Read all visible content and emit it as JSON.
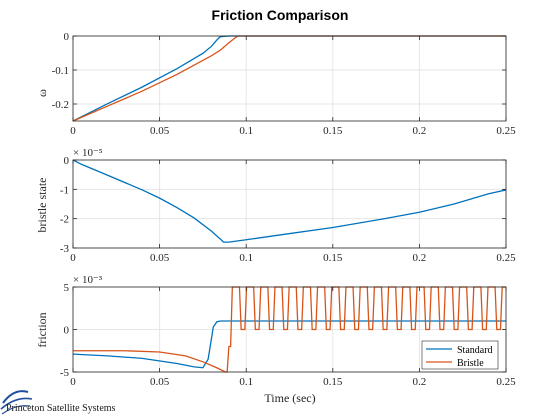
{
  "figure": {
    "title": "Friction Comparison",
    "xlabel": "Time (sec)",
    "logo_text": "Princeton Satellite Systems"
  },
  "colors": {
    "series1": "#0072BD",
    "series2": "#D95319",
    "grid": "#e6e6e6",
    "axis": "#262626"
  },
  "chart_data": [
    {
      "type": "line",
      "ylabel": "ω",
      "xlim": [
        0,
        0.25
      ],
      "ylim": [
        -0.25,
        0
      ],
      "x_ticks": [
        "0",
        "0.05",
        "0.1",
        "0.15",
        "0.2",
        "0.25"
      ],
      "y_ticks": [
        {
          "value": -0.2,
          "label": "-0.2"
        },
        {
          "value": -0.1,
          "label": "-0.1"
        },
        {
          "value": 0,
          "label": "0"
        }
      ],
      "exponent": "",
      "grid": true,
      "series": [
        {
          "color": "#0072BD",
          "x": [
            0,
            0.02,
            0.04,
            0.06,
            0.075,
            0.08,
            0.083,
            0.085,
            0.09,
            0.25
          ],
          "y": [
            -0.25,
            -0.199,
            -0.15,
            -0.096,
            -0.051,
            -0.03,
            -0.012,
            -0.002,
            0,
            0
          ]
        },
        {
          "color": "#D95319",
          "x": [
            0,
            0.02,
            0.04,
            0.06,
            0.08,
            0.085,
            0.09,
            0.095,
            0.25
          ],
          "y": [
            -0.25,
            -0.206,
            -0.162,
            -0.113,
            -0.058,
            -0.042,
            -0.02,
            0,
            0
          ]
        }
      ]
    },
    {
      "type": "line",
      "ylabel": "bristle state",
      "xlim": [
        0,
        0.25
      ],
      "ylim": [
        -3,
        0
      ],
      "x_ticks": [
        "0",
        "0.05",
        "0.1",
        "0.15",
        "0.2",
        "0.25"
      ],
      "y_ticks": [
        {
          "value": -3,
          "label": "-3"
        },
        {
          "value": -2,
          "label": "-2"
        },
        {
          "value": -1,
          "label": "-1"
        },
        {
          "value": 0,
          "label": "0"
        }
      ],
      "exponent": "× 10⁻⁵",
      "grid": true,
      "series": [
        {
          "color": "#0072BD",
          "x": [
            0,
            0.005,
            0.02,
            0.04,
            0.05,
            0.06,
            0.07,
            0.08,
            0.087,
            0.09,
            0.1,
            0.12,
            0.15,
            0.18,
            0.2,
            0.22,
            0.24,
            0.25
          ],
          "y": [
            0,
            -0.15,
            -0.52,
            -1.02,
            -1.3,
            -1.62,
            -1.98,
            -2.43,
            -2.8,
            -2.8,
            -2.72,
            -2.55,
            -2.3,
            -2.0,
            -1.78,
            -1.5,
            -1.15,
            -1.02
          ]
        }
      ]
    },
    {
      "type": "line",
      "ylabel": "friction",
      "xlim": [
        0,
        0.25
      ],
      "ylim": [
        -5,
        5
      ],
      "x_ticks": [
        "0",
        "0.05",
        "0.1",
        "0.15",
        "0.2",
        "0.25"
      ],
      "y_ticks": [
        {
          "value": -5,
          "label": "-5"
        },
        {
          "value": 0,
          "label": "0"
        },
        {
          "value": 5,
          "label": "5"
        }
      ],
      "exponent": "× 10⁻³",
      "grid": true,
      "legend": {
        "position": "bottom-right",
        "entries": [
          "Standard",
          "Bristle"
        ]
      },
      "series": [
        {
          "name": "Standard",
          "color": "#0072BD",
          "x": [
            0,
            0.02,
            0.04,
            0.06,
            0.07,
            0.075,
            0.078,
            0.08,
            0.081,
            0.083,
            0.085,
            0.09,
            0.25
          ],
          "y": [
            -2.9,
            -3.1,
            -3.4,
            -4.0,
            -4.4,
            -4.5,
            -3.5,
            -1.0,
            0.3,
            0.9,
            1.0,
            1.0,
            1.0
          ]
        },
        {
          "name": "Bristle",
          "color": "#D95319",
          "square_wave": {
            "start": 0.092,
            "end": 0.25,
            "period": 0.0082,
            "high": 5,
            "low": 0
          },
          "x": [
            0,
            0.03,
            0.05,
            0.065,
            0.075,
            0.083,
            0.088,
            0.089,
            0.09,
            0.091,
            0.092
          ],
          "y": [
            -2.5,
            -2.5,
            -2.65,
            -3.1,
            -3.8,
            -4.5,
            -5,
            -5,
            -2.0,
            -2.0,
            5
          ]
        }
      ]
    }
  ]
}
